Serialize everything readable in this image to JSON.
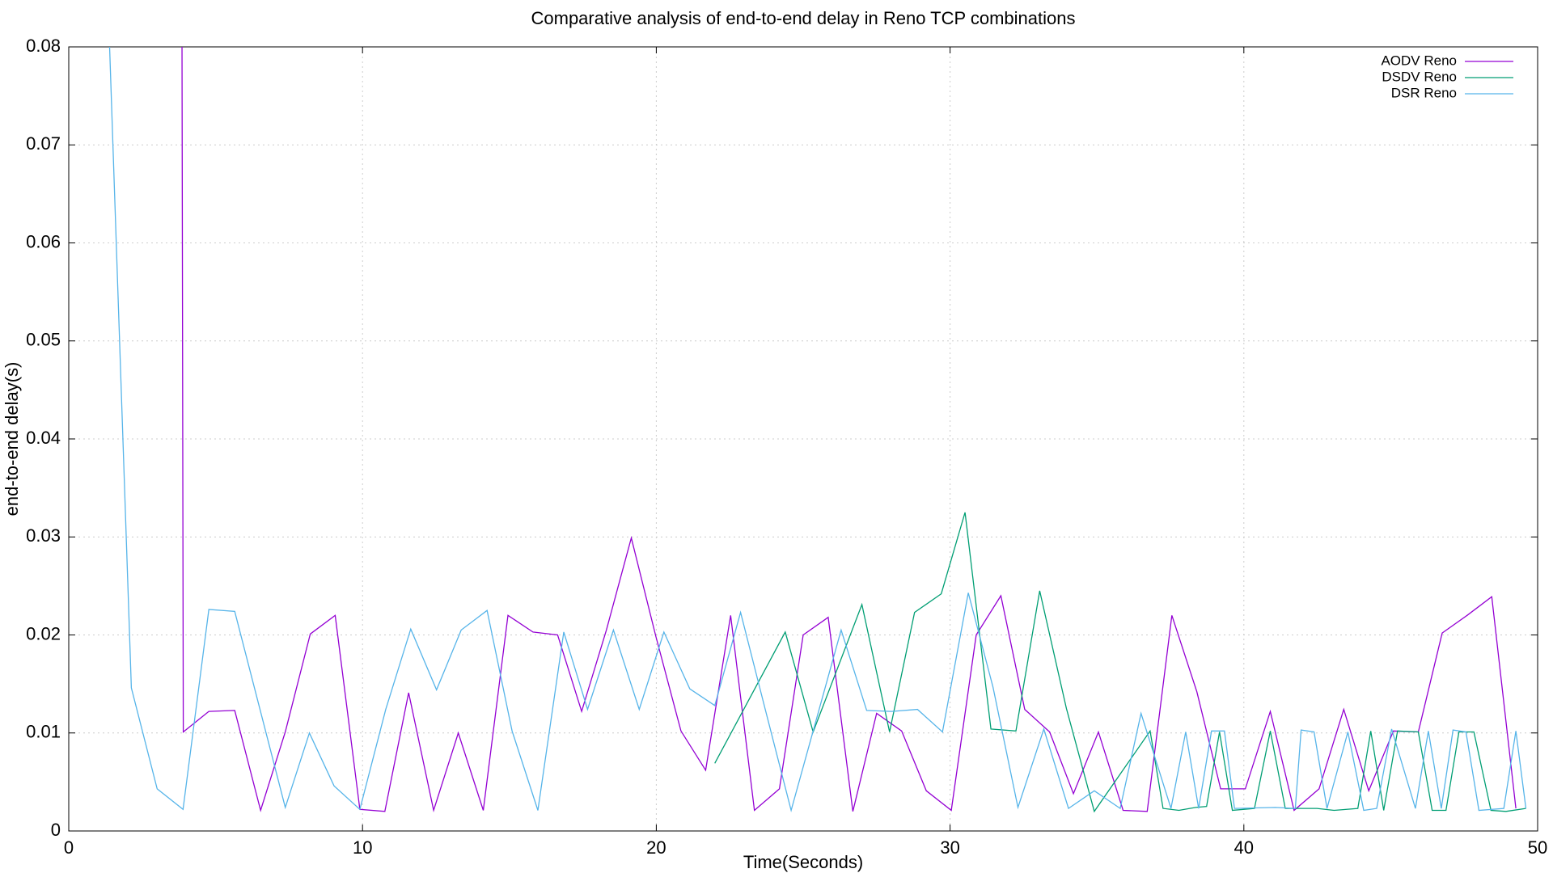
{
  "chart_data": {
    "type": "line",
    "title": "Comparative analysis of end-to-end delay in Reno TCP combinations",
    "x_label": "Time(Seconds)",
    "y_label": "end-to-end delay(s)",
    "xlim": [
      0,
      50
    ],
    "ylim": [
      0,
      0.08
    ],
    "xticks": [
      0,
      10,
      20,
      30,
      40,
      50
    ],
    "yticks": [
      0,
      0.01,
      0.02,
      0.03,
      0.04,
      0.05,
      0.06,
      0.07,
      0.08
    ],
    "grid": true,
    "legend": "top-right",
    "series": [
      {
        "name": "AODV Reno",
        "color": "#9400d3",
        "x": [
          3.85,
          3.9,
          4.77,
          5.65,
          6.53,
          7.37,
          8.22,
          9.07,
          9.91,
          10.76,
          11.57,
          12.42,
          13.26,
          14.11,
          14.95,
          15.8,
          16.64,
          17.46,
          18.3,
          19.15,
          19.99,
          20.84,
          21.68,
          22.53,
          23.34,
          24.19,
          25.0,
          25.85,
          26.69,
          27.5,
          28.35,
          29.19,
          30.04,
          30.89,
          31.73,
          32.54,
          33.39,
          34.2,
          35.05,
          35.89,
          36.71,
          37.55,
          38.4,
          39.21,
          40.05,
          40.9,
          41.71,
          42.56,
          43.4,
          44.25,
          45.09,
          45.94,
          46.75,
          47.6,
          48.44,
          49.26
        ],
        "values": [
          0.09,
          0.0101,
          0.0122,
          0.0123,
          0.0021,
          0.0101,
          0.0201,
          0.022,
          0.0022,
          0.002,
          0.0141,
          0.0021,
          0.01,
          0.0021,
          0.022,
          0.0203,
          0.02,
          0.0122,
          0.0205,
          0.0299,
          0.0198,
          0.0102,
          0.0062,
          0.022,
          0.0021,
          0.0043,
          0.02,
          0.0218,
          0.002,
          0.012,
          0.0102,
          0.0041,
          0.0021,
          0.02,
          0.024,
          0.0124,
          0.0101,
          0.0038,
          0.0101,
          0.0021,
          0.002,
          0.022,
          0.0142,
          0.0043,
          0.0043,
          0.0122,
          0.0021,
          0.0043,
          0.0124,
          0.0041,
          0.0102,
          0.0101,
          0.0202,
          0.022,
          0.0239,
          0.0023
        ]
      },
      {
        "name": "DSDV Reno",
        "color": "#009e73",
        "x": [
          21.99,
          24.39,
          25.34,
          27.0,
          27.94,
          28.79,
          29.7,
          30.51,
          31.39,
          32.24,
          33.05,
          33.96,
          34.91,
          36.81,
          37.25,
          37.79,
          38.36,
          38.73,
          39.17,
          39.61,
          40.36,
          40.9,
          41.41,
          42.49,
          43.07,
          43.88,
          44.32,
          44.76,
          45.23,
          45.94,
          46.41,
          46.88,
          47.32,
          47.83,
          48.41,
          48.92,
          49.6
        ],
        "values": [
          0.0069,
          0.0203,
          0.0101,
          0.0231,
          0.0101,
          0.0223,
          0.0242,
          0.0325,
          0.0104,
          0.0102,
          0.0245,
          0.0125,
          0.002,
          0.0102,
          0.0023,
          0.0021,
          0.0024,
          0.0025,
          0.0101,
          0.0021,
          0.0023,
          0.0102,
          0.0023,
          0.0023,
          0.0021,
          0.0023,
          0.0102,
          0.0021,
          0.0102,
          0.0101,
          0.0021,
          0.0021,
          0.0101,
          0.0101,
          0.0021,
          0.002,
          0.0023
        ]
      },
      {
        "name": "DSR Reno",
        "color": "#56b4e9",
        "x": [
          1.39,
          2.13,
          3.01,
          3.89,
          4.77,
          5.65,
          7.37,
          8.19,
          9.03,
          9.91,
          10.79,
          11.64,
          12.52,
          13.36,
          14.24,
          15.09,
          15.97,
          16.85,
          17.66,
          18.54,
          19.42,
          20.26,
          21.14,
          21.99,
          22.87,
          23.71,
          24.59,
          26.29,
          27.16,
          28.01,
          28.89,
          29.74,
          30.62,
          31.46,
          32.31,
          33.19,
          34.03,
          34.91,
          35.79,
          36.5,
          37.52,
          38.02,
          38.46,
          38.9,
          39.34,
          39.68,
          41.07,
          41.75,
          41.95,
          42.39,
          42.83,
          43.54,
          44.08,
          44.52,
          45.03,
          45.84,
          46.28,
          46.72,
          47.12,
          47.56,
          48.0,
          48.85,
          49.26,
          49.6
        ],
        "values": [
          0.08,
          0.0146,
          0.0043,
          0.0022,
          0.0226,
          0.0224,
          0.0024,
          0.01,
          0.0046,
          0.0022,
          0.0124,
          0.0206,
          0.0144,
          0.0205,
          0.0225,
          0.0102,
          0.0021,
          0.0203,
          0.0124,
          0.0205,
          0.0124,
          0.0203,
          0.0145,
          0.0128,
          0.0223,
          0.0124,
          0.0021,
          0.0205,
          0.0123,
          0.0122,
          0.0124,
          0.0101,
          0.0243,
          0.0147,
          0.0024,
          0.0104,
          0.0023,
          0.0041,
          0.0023,
          0.012,
          0.0023,
          0.0101,
          0.0023,
          0.0102,
          0.0102,
          0.0023,
          0.0024,
          0.0023,
          0.0103,
          0.0101,
          0.0023,
          0.0101,
          0.0021,
          0.0023,
          0.0104,
          0.0023,
          0.0102,
          0.0023,
          0.0103,
          0.0101,
          0.0021,
          0.0023,
          0.0102,
          0.0023
        ]
      }
    ]
  }
}
